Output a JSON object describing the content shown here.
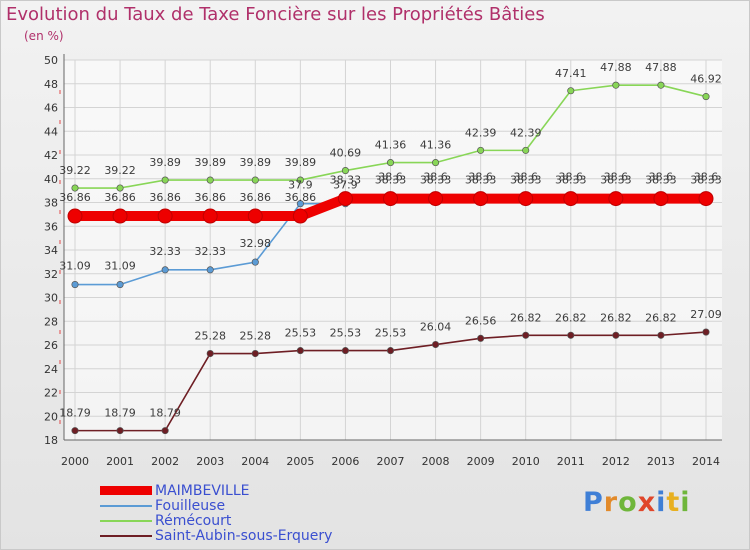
{
  "title": "Evolution du Taux de Taxe Foncière sur les Propriétés Bâties",
  "unit_label": "(en %)",
  "logo_text": "Proxiti",
  "chart_data": {
    "type": "line",
    "title": "Evolution du Taux de Taxe Foncière sur les Propriétés Bâties",
    "ylabel": "(en %)",
    "xlabel": "",
    "x": [
      "2000",
      "2001",
      "2002",
      "2003",
      "2004",
      "2005",
      "2006",
      "2007",
      "2008",
      "2009",
      "2010",
      "2011",
      "2012",
      "2013",
      "2014"
    ],
    "ylim": [
      18,
      50
    ],
    "yticks": [
      18,
      20,
      22,
      24,
      26,
      28,
      30,
      32,
      34,
      36,
      38,
      40,
      42,
      44,
      46,
      48,
      50
    ],
    "grid": true,
    "legend_position": "bottom-left",
    "series": [
      {
        "name": "MAIMBEVILLE",
        "color": "#ee0000",
        "values": [
          36.86,
          36.86,
          36.86,
          36.86,
          36.86,
          36.86,
          38.33,
          38.33,
          38.33,
          38.33,
          38.33,
          38.33,
          38.33,
          38.33,
          38.33
        ],
        "labels": [
          "36.86",
          "36.86",
          "36.86",
          "36.86",
          "36.86",
          "36.86",
          "38.33",
          "38.33",
          "38.33",
          "38.33",
          "38.33",
          "38.33",
          "38.33",
          "38.33",
          "38.33"
        ]
      },
      {
        "name": "Fouilleuse",
        "color": "#5b9bd5",
        "values": [
          31.09,
          31.09,
          32.33,
          32.33,
          32.98,
          37.9,
          37.9,
          38.6,
          38.6,
          38.6,
          38.6,
          38.6,
          38.6,
          38.6,
          38.6
        ],
        "labels": [
          "31.09",
          "31.09",
          "32.33",
          "32.33",
          "32.98",
          "37.9",
          "37.9",
          "38.6",
          "38.6",
          "38.6",
          "38.6",
          "38.6",
          "38.6",
          "38.6",
          "38.6"
        ]
      },
      {
        "name": "Rémécourt",
        "color": "#88d657",
        "values": [
          39.22,
          39.22,
          39.89,
          39.89,
          39.89,
          39.89,
          40.69,
          41.36,
          41.36,
          42.39,
          42.39,
          47.41,
          47.88,
          47.88,
          46.92
        ],
        "labels": [
          "39.22",
          "39.22",
          "39.89",
          "39.89",
          "39.89",
          "39.89",
          "40.69",
          "41.36",
          "41.36",
          "42.39",
          "42.39",
          "47.41",
          "47.88",
          "47.88",
          "46.92"
        ]
      },
      {
        "name": "Saint-Aubin-sous-Erquery",
        "color": "#6e1e24",
        "values": [
          18.79,
          18.79,
          18.79,
          25.28,
          25.28,
          25.53,
          25.53,
          25.53,
          26.04,
          26.56,
          26.82,
          26.82,
          26.82,
          26.82,
          27.09
        ],
        "labels": [
          "18.79",
          "18.79",
          "18.79",
          "25.28",
          "25.28",
          "25.53",
          "25.53",
          "25.53",
          "26.04",
          "26.56",
          "26.82",
          "26.82",
          "26.82",
          "26.82",
          "27.09"
        ]
      }
    ]
  }
}
